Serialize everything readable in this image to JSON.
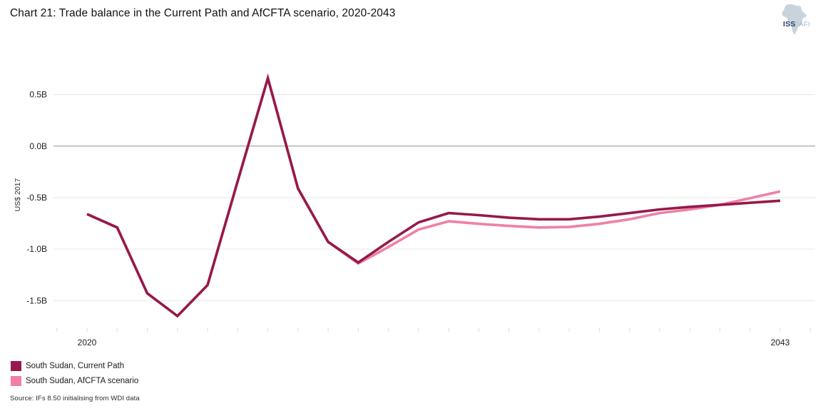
{
  "header": {
    "title": "Chart 21: Trade balance in the Current Path and AfCFTA scenario, 2020-2043",
    "logo": {
      "org": "ISS",
      "divider": "|",
      "unit": "AFI"
    }
  },
  "chart_data": {
    "type": "line",
    "title": "Chart 21: Trade balance in the Current Path and AfCFTA scenario, 2020-2043",
    "xlabel": "",
    "ylabel": "US$ 2017",
    "x": [
      2020,
      2021,
      2022,
      2023,
      2024,
      2025,
      2026,
      2027,
      2028,
      2029,
      2030,
      2031,
      2032,
      2033,
      2034,
      2035,
      2036,
      2037,
      2038,
      2039,
      2040,
      2041,
      2042,
      2043
    ],
    "series": [
      {
        "name": "South Sudan, Current Path",
        "color": "#96194B",
        "values": [
          -0.66,
          -0.79,
          -1.43,
          -1.65,
          -1.35,
          -0.34,
          0.66,
          -0.41,
          -0.93,
          -1.13,
          -0.93,
          -0.74,
          -0.65,
          -0.67,
          -0.695,
          -0.71,
          -0.71,
          -0.685,
          -0.65,
          -0.615,
          -0.59,
          -0.57,
          -0.55,
          -0.53
        ]
      },
      {
        "name": "South Sudan, AfCFTA scenario",
        "color": "#F080A4",
        "values": [
          -0.66,
          -0.79,
          -1.43,
          -1.65,
          -1.35,
          -0.34,
          0.66,
          -0.41,
          -0.93,
          -1.14,
          -0.98,
          -0.81,
          -0.73,
          -0.755,
          -0.775,
          -0.79,
          -0.785,
          -0.755,
          -0.71,
          -0.65,
          -0.615,
          -0.57,
          -0.505,
          -0.44
        ]
      }
    ],
    "ylim": [
      -1.75,
      0.72
    ],
    "yticks": [
      {
        "value": 0.5,
        "label": "0.5B"
      },
      {
        "value": 0.0,
        "label": "0.0B"
      },
      {
        "value": -0.5,
        "label": "-0.5B"
      },
      {
        "value": -1.0,
        "label": "-1.0B"
      },
      {
        "value": -1.5,
        "label": "-1.5B"
      }
    ],
    "xtick_labels": [
      {
        "year": 2020,
        "label": "2020"
      },
      {
        "year": 2043,
        "label": "2043"
      }
    ],
    "x_minor_ticks": {
      "from": 2019,
      "to": 2044
    },
    "grid": "horizontal",
    "legend_position": "bottom-left",
    "colors": {
      "grid": "#e6e6e6",
      "zero_line": "#8f8f8f",
      "minor_tick": "#d9d9d9"
    }
  },
  "legend": {
    "items": [
      {
        "label": "South Sudan, Current Path",
        "color": "#96194B"
      },
      {
        "label": "South Sudan, AfCFTA scenario",
        "color": "#F080A4"
      }
    ]
  },
  "source": "Source: IFs 8.50 initialising from WDI data"
}
